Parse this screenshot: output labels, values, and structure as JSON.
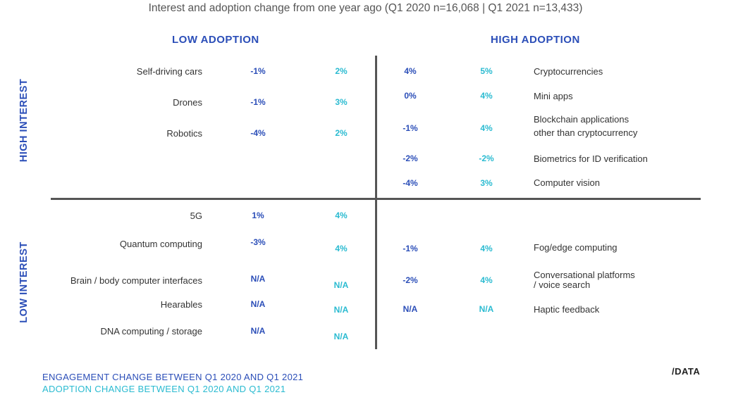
{
  "subtitle": "Interest and adoption change from one year ago (Q1 2020 n=16,068 | Q1 2021 n=13,433)",
  "headers": {
    "low_adoption": "LOW ADOPTION",
    "high_adoption": "HIGH ADOPTION"
  },
  "axis": {
    "high_interest": "HIGH INTEREST",
    "low_interest": "LOW INTEREST"
  },
  "legend": {
    "engagement": "ENGAGEMENT CHANGE BETWEEN Q1 2020 AND Q1 2021",
    "adoption": "ADOPTION CHANGE BETWEEN Q1 2020 AND Q1 2021"
  },
  "logo": "/DATA",
  "colors": {
    "engagement": "#2b4eb8",
    "adoption": "#2bbbd1",
    "divider": "#555555"
  },
  "chart_data": {
    "type": "table",
    "series": [
      {
        "name": "ENGAGEMENT CHANGE BETWEEN Q1 2020 AND Q1 2021"
      },
      {
        "name": "ADOPTION CHANGE BETWEEN Q1 2020 AND Q1 2021"
      }
    ],
    "quadrants": [
      {
        "interest": "HIGH INTEREST",
        "adoption": "LOW ADOPTION",
        "items": [
          {
            "label": "Self-driving cars",
            "engagement": "-1%",
            "adoption": "2%"
          },
          {
            "label": "Drones",
            "engagement": "-1%",
            "adoption": "3%"
          },
          {
            "label": "Robotics",
            "engagement": "-4%",
            "adoption": "2%"
          }
        ]
      },
      {
        "interest": "HIGH INTEREST",
        "adoption": "HIGH ADOPTION",
        "items": [
          {
            "label": "Cryptocurrencies",
            "engagement": "4%",
            "adoption": "5%"
          },
          {
            "label": "Mini apps",
            "engagement": "0%",
            "adoption": "4%"
          },
          {
            "label": "Blockchain applications",
            "label2": "other than cryptocurrency",
            "engagement": "-1%",
            "adoption": "4%"
          },
          {
            "label": "Biometrics for ID verification",
            "engagement": "-2%",
            "adoption": "-2%"
          },
          {
            "label": "Computer vision",
            "engagement": "-4%",
            "adoption": "3%"
          }
        ]
      },
      {
        "interest": "LOW INTEREST",
        "adoption": "LOW ADOPTION",
        "items": [
          {
            "label": "5G",
            "engagement": "1%",
            "adoption": "4%"
          },
          {
            "label": "Quantum computing",
            "engagement": "-3%",
            "adoption": "4%"
          },
          {
            "label": "Brain / body computer interfaces",
            "engagement": "N/A",
            "adoption": "N/A"
          },
          {
            "label": "Hearables",
            "engagement": "N/A",
            "adoption": "N/A"
          },
          {
            "label": "DNA computing / storage",
            "engagement": "N/A",
            "adoption": "N/A"
          }
        ]
      },
      {
        "interest": "LOW INTEREST",
        "adoption": "HIGH ADOPTION",
        "items": [
          {
            "label": "Fog/edge computing",
            "engagement": "-1%",
            "adoption": "4%"
          },
          {
            "label": "Conversational platforms",
            "label2": "/ voice search",
            "engagement": "-2%",
            "adoption": "4%"
          },
          {
            "label": "Haptic feedback",
            "engagement": "N/A",
            "adoption": "N/A"
          }
        ]
      }
    ]
  }
}
